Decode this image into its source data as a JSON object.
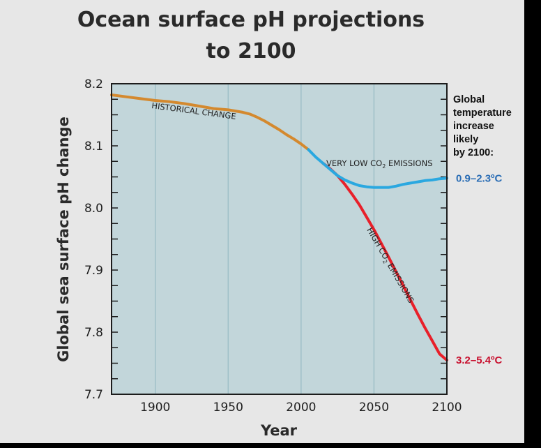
{
  "chart_data": {
    "type": "line",
    "title_lines": [
      "Ocean surface pH projections",
      "to 2100"
    ],
    "xlabel": "Year",
    "ylabel": "Global sea surface pH change",
    "xlim": [
      1870,
      2100
    ],
    "ylim": [
      7.7,
      8.2
    ],
    "x_ticks": [
      1900,
      1950,
      2000,
      2050,
      2100
    ],
    "y_ticks": [
      "8.2",
      "8.1",
      "8.0",
      "7.9",
      "7.8",
      "7.7"
    ],
    "grid": "vertical",
    "series": [
      {
        "name": "HISTORICAL CHANGE",
        "color": "#d4892e",
        "points": [
          [
            1870,
            8.182
          ],
          [
            1880,
            8.179
          ],
          [
            1890,
            8.176
          ],
          [
            1900,
            8.173
          ],
          [
            1910,
            8.171
          ],
          [
            1920,
            8.168
          ],
          [
            1930,
            8.164
          ],
          [
            1940,
            8.16
          ],
          [
            1950,
            8.158
          ],
          [
            1960,
            8.154
          ],
          [
            1965,
            8.151
          ],
          [
            1970,
            8.146
          ],
          [
            1975,
            8.14
          ],
          [
            1980,
            8.133
          ],
          [
            1985,
            8.126
          ],
          [
            1990,
            8.118
          ],
          [
            1995,
            8.111
          ],
          [
            2000,
            8.103
          ],
          [
            2005,
            8.094
          ]
        ]
      },
      {
        "name": "VERY LOW CO2 EMISSIONS",
        "color": "#2aa8e0",
        "points": [
          [
            2005,
            8.094
          ],
          [
            2010,
            8.082
          ],
          [
            2015,
            8.072
          ],
          [
            2020,
            8.062
          ],
          [
            2025,
            8.052
          ],
          [
            2030,
            8.045
          ],
          [
            2035,
            8.04
          ],
          [
            2040,
            8.036
          ],
          [
            2045,
            8.034
          ],
          [
            2050,
            8.033
          ],
          [
            2055,
            8.033
          ],
          [
            2060,
            8.033
          ],
          [
            2065,
            8.035
          ],
          [
            2070,
            8.038
          ],
          [
            2075,
            8.04
          ],
          [
            2080,
            8.042
          ],
          [
            2085,
            8.044
          ],
          [
            2090,
            8.045
          ],
          [
            2095,
            8.047
          ],
          [
            2100,
            8.048
          ]
        ]
      },
      {
        "name": "HIGH CO2 EMISSIONS",
        "color": "#e8202a",
        "points": [
          [
            2015,
            8.072
          ],
          [
            2020,
            8.063
          ],
          [
            2025,
            8.052
          ],
          [
            2030,
            8.038
          ],
          [
            2035,
            8.022
          ],
          [
            2040,
            8.005
          ],
          [
            2045,
            7.985
          ],
          [
            2050,
            7.965
          ],
          [
            2055,
            7.943
          ],
          [
            2060,
            7.921
          ],
          [
            2065,
            7.898
          ],
          [
            2070,
            7.875
          ],
          [
            2075,
            7.852
          ],
          [
            2080,
            7.829
          ],
          [
            2085,
            7.807
          ],
          [
            2090,
            7.786
          ],
          [
            2095,
            7.765
          ],
          [
            2100,
            7.755
          ]
        ]
      }
    ],
    "curve_labels": {
      "historical": "HISTORICAL CHANGE",
      "low_prefix": "VERY LOW CO",
      "low_suffix": " EMISSIONS",
      "high_prefix": "HIGH CO",
      "high_suffix": " EMISSIONS",
      "subscript": "2"
    },
    "side_note": [
      "Global",
      "temperature",
      "increase",
      "likely",
      "by 2100:"
    ],
    "annotations": [
      {
        "text": "0.9–2.3ºC",
        "color": "#2a6db5",
        "y": 8.048
      },
      {
        "text": "3.2–5.4ºC",
        "color": "#c8102e",
        "y": 7.755
      }
    ],
    "background_color": "#c2d6da",
    "gridline_color": "#9fc0c8"
  }
}
